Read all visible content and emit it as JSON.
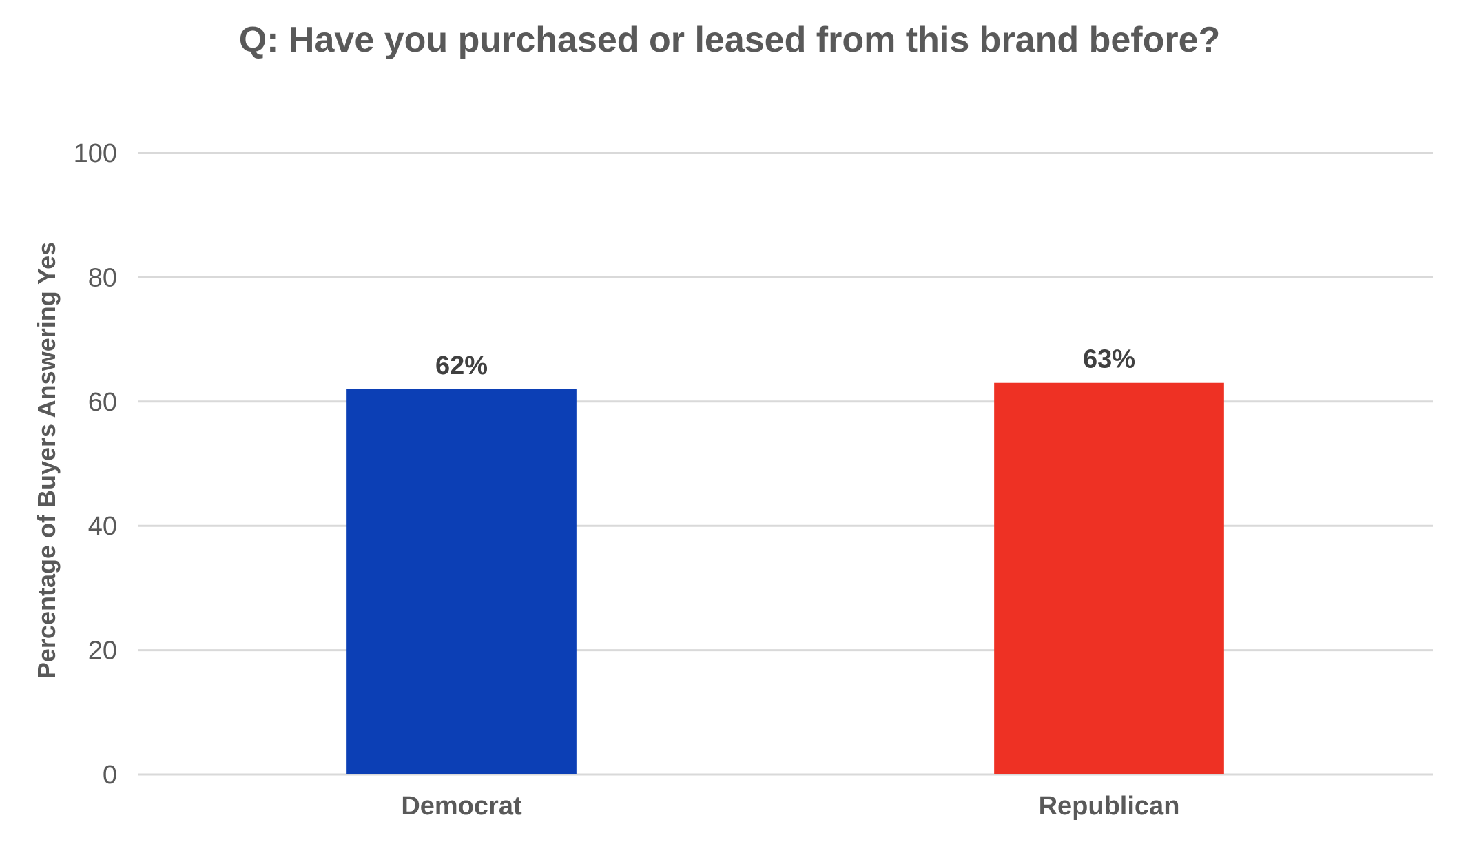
{
  "chart_data": {
    "type": "bar",
    "title": "Q: Have you purchased or leased from this brand before?",
    "xlabel": "",
    "ylabel": "Percentage of Buyers Answering Yes",
    "ylim": [
      0,
      100
    ],
    "yticks": [
      0,
      20,
      40,
      60,
      80,
      100
    ],
    "ytick_labels": [
      "0",
      "20",
      "40",
      "60",
      "80",
      "100"
    ],
    "categories": [
      "Democrat",
      "Republican"
    ],
    "values": [
      62,
      63
    ],
    "data_labels": [
      "62%",
      "63%"
    ],
    "colors": [
      "#0c3fb5",
      "#ee3124"
    ],
    "grid": true,
    "legend": "none"
  }
}
